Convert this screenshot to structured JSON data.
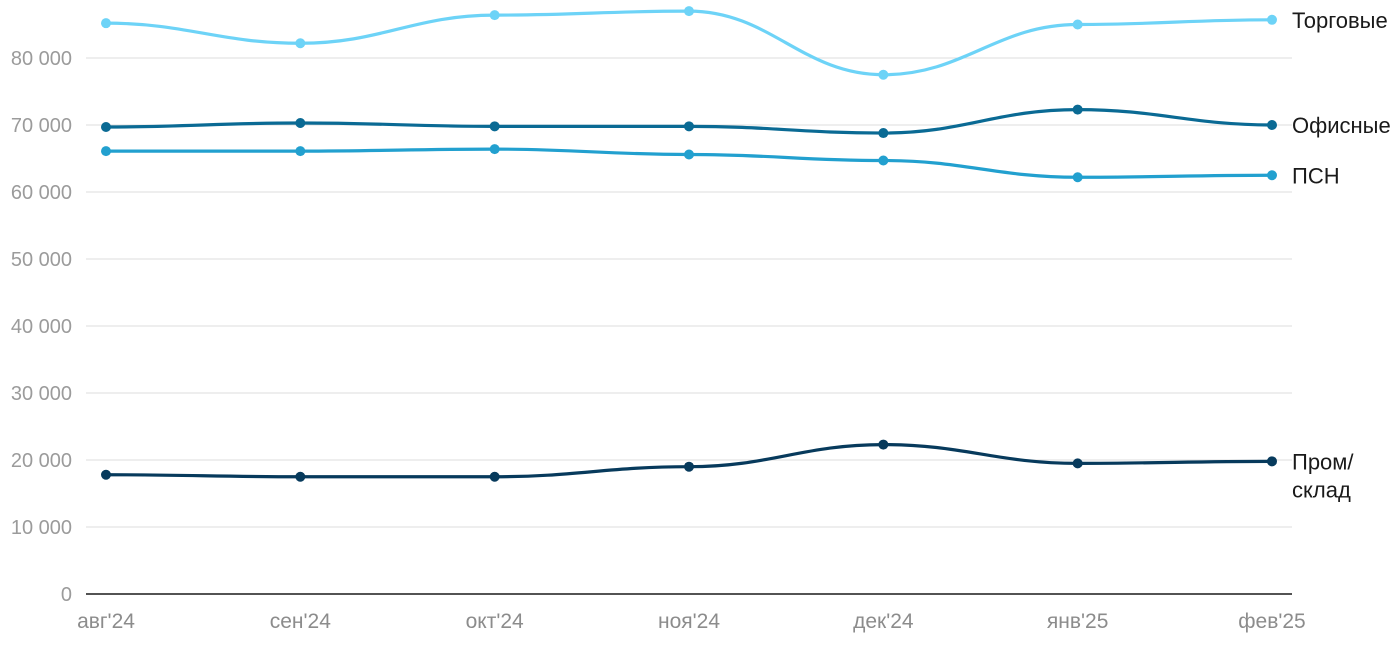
{
  "chart_data": {
    "type": "line",
    "title": "",
    "xlabel": "",
    "ylabel": "",
    "categories": [
      "авг'24",
      "сен'24",
      "окт'24",
      "ноя'24",
      "дек'24",
      "янв'25",
      "фев'25"
    ],
    "ylim": [
      0,
      90000
    ],
    "yticks": [
      0,
      10000,
      20000,
      30000,
      40000,
      50000,
      60000,
      70000,
      80000
    ],
    "ytick_labels": [
      "0",
      "10 000",
      "20 000",
      "30 000",
      "40 000",
      "50 000",
      "60 000",
      "70 000",
      "80 000"
    ],
    "grid": true,
    "legend": "inline labels at right end of each line",
    "series": [
      {
        "name": "Торговые",
        "label_lines": [
          "Торговые"
        ],
        "color": "#6dd3f7",
        "values": [
          85200,
          82200,
          86400,
          87000,
          77500,
          85000,
          85700
        ]
      },
      {
        "name": "Офисные",
        "label_lines": [
          "Офисные"
        ],
        "color": "#0a6a94",
        "values": [
          69700,
          70300,
          69800,
          69800,
          68800,
          72300,
          70000
        ]
      },
      {
        "name": "ПСН",
        "label_lines": [
          "ПСН"
        ],
        "color": "#22a0cf",
        "values": [
          66100,
          66100,
          66400,
          65600,
          64700,
          62200,
          62500
        ]
      },
      {
        "name": "Пром/ склад",
        "label_lines": [
          "Пром/",
          "склад"
        ],
        "color": "#073a5c",
        "values": [
          17800,
          17500,
          17500,
          19000,
          22300,
          19500,
          19800
        ]
      }
    ]
  }
}
